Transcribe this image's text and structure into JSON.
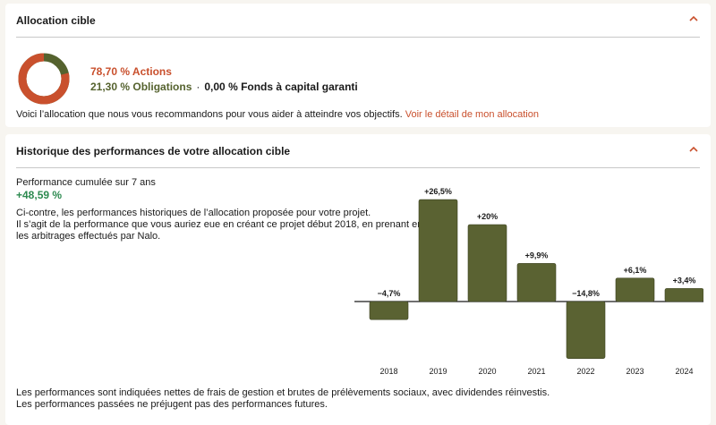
{
  "allocation": {
    "title": "Allocation cible",
    "actions_text": "78,70 % Actions",
    "obligations_text": "21,30 % Obligations",
    "separator": "·",
    "fonds_text": "0,00 % Fonds à capital garanti",
    "donut": {
      "actions_pct": 78.7,
      "obligations_pct": 21.3,
      "actions_color": "#c9502d",
      "obligations_color": "#55622e"
    },
    "reco_text": "Voici l’allocation que nous vous recommandons pour vous aider à atteindre vos objectifs.",
    "reco_link": "Voir le détail de mon allocation"
  },
  "historique": {
    "title": "Historique des performances de votre allocation cible",
    "perf_label": "Performance cumulée sur 7 ans",
    "perf_value": "+48,59 %",
    "desc_line1": "Ci-contre, les performances historiques de l’allocation proposée pour votre projet.",
    "desc_line2": "Il s’agit de la performance que vous auriez eue en créant ce projet début 2018, en prenant en compte",
    "desc_line3": "les arbitrages effectués par Nalo.",
    "footnote1": "Les performances sont indiquées nettes de frais de gestion et brutes de prélèvements sociaux, avec dividendes réinvestis.",
    "footnote2": "Les performances passées ne préjugent pas des performances futures."
  },
  "colors": {
    "accent": "#c9502d",
    "bar": "#5a6232",
    "positive": "#2c8a4f"
  },
  "chart_data": {
    "type": "bar",
    "categories": [
      "2018",
      "2019",
      "2020",
      "2021",
      "2022",
      "2023",
      "2024"
    ],
    "values": [
      -4.7,
      26.5,
      20,
      9.9,
      -14.8,
      6.1,
      3.4
    ],
    "labels": [
      "−4,7%",
      "+26,5%",
      "+20%",
      "+9,9%",
      "−14,8%",
      "+6,1%",
      "+3,4%"
    ],
    "ylim": [
      -15,
      26.5
    ],
    "grid": false
  }
}
